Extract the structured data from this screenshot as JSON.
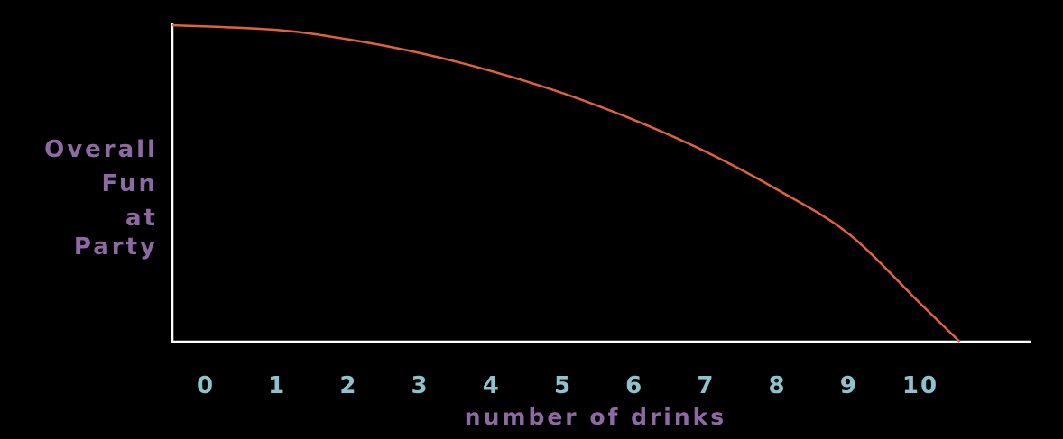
{
  "chart_data": {
    "type": "line",
    "xlabel": "number of drinks",
    "ylabel_lines": [
      "Overall",
      "Fun",
      "at",
      "Party"
    ],
    "x_ticks": [
      "0",
      "1",
      "2",
      "3",
      "4",
      "5",
      "6",
      "7",
      "8",
      "9",
      "10"
    ],
    "xlim": [
      0,
      11.2
    ],
    "ylim": [
      0,
      1
    ],
    "grid": false,
    "series": [
      {
        "color": "#e0623c",
        "x": [
          0,
          1,
          2,
          3,
          4,
          5,
          6,
          7,
          8,
          9,
          10,
          10.55
        ],
        "y": [
          1.0,
          0.985,
          0.955,
          0.912,
          0.855,
          0.785,
          0.7,
          0.6,
          0.48,
          0.34,
          0.12,
          0.0
        ]
      }
    ],
    "colors": {
      "background": "#000000",
      "axis": "#ffffff",
      "ylabel": "#8e6aa2",
      "xlabel": "#8e6aa2",
      "ticks": "#8cc3cc"
    }
  }
}
